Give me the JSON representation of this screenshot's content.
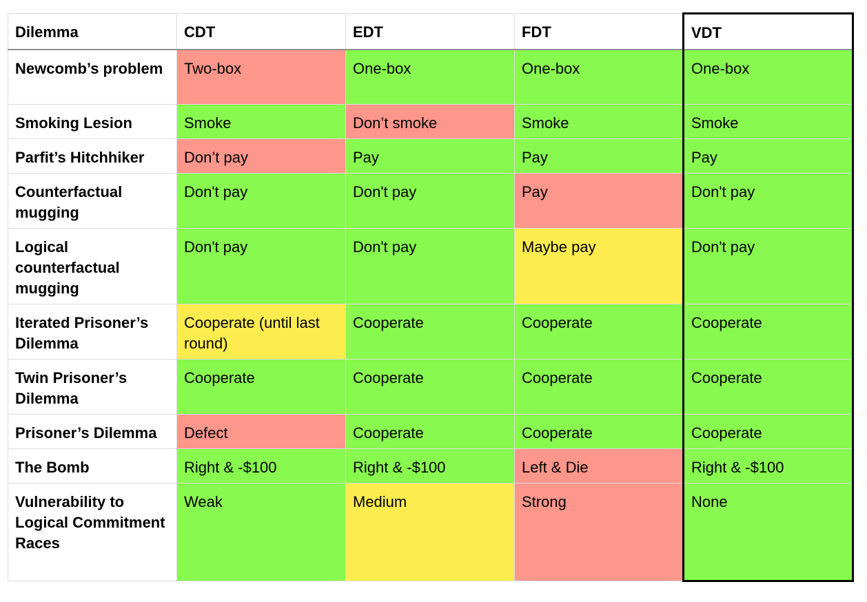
{
  "colors": {
    "green": "#88f94f",
    "red": "#fd968b",
    "yellow": "#fdec50",
    "white": "#ffffff"
  },
  "headers": [
    "Dilemma",
    "CDT",
    "EDT",
    "FDT",
    "VDT"
  ],
  "rows": [
    {
      "name": "Newcomb’s problem",
      "cells": [
        [
          "Two-box",
          "red"
        ],
        [
          "One-box",
          "green"
        ],
        [
          "One-box",
          "green"
        ],
        [
          "One-box",
          "green"
        ]
      ]
    },
    {
      "name": "Smoking Lesion",
      "cells": [
        [
          "Smoke",
          "green"
        ],
        [
          "Don’t smoke",
          "red"
        ],
        [
          "Smoke",
          "green"
        ],
        [
          "Smoke",
          "green"
        ]
      ]
    },
    {
      "name": "Parfit’s Hitchhiker",
      "cells": [
        [
          "Don’t pay",
          "red"
        ],
        [
          "Pay",
          "green"
        ],
        [
          "Pay",
          "green"
        ],
        [
          "Pay",
          "green"
        ]
      ]
    },
    {
      "name": "Counterfactual mugging",
      "cells": [
        [
          "Don't pay",
          "green"
        ],
        [
          "Don't pay",
          "green"
        ],
        [
          "Pay",
          "red"
        ],
        [
          "Don't pay",
          "green"
        ]
      ]
    },
    {
      "name": "Logical counterfactual mugging",
      "cells": [
        [
          "Don't pay",
          "green"
        ],
        [
          "Don't pay",
          "green"
        ],
        [
          "Maybe pay",
          "yellow"
        ],
        [
          "Don't pay",
          "green"
        ]
      ]
    },
    {
      "name": "Iterated Prisoner’s Dilemma",
      "cells": [
        [
          "Cooperate (until last round)",
          "yellow"
        ],
        [
          "Cooperate",
          "green"
        ],
        [
          "Cooperate",
          "green"
        ],
        [
          "Cooperate",
          "green"
        ]
      ]
    },
    {
      "name": "Twin Prisoner’s Dilemma",
      "cells": [
        [
          "Cooperate",
          "green"
        ],
        [
          "Cooperate",
          "green"
        ],
        [
          "Cooperate",
          "green"
        ],
        [
          "Cooperate",
          "green"
        ]
      ]
    },
    {
      "name": "Prisoner’s Dilemma",
      "cells": [
        [
          "Defect",
          "red"
        ],
        [
          "Cooperate",
          "green"
        ],
        [
          "Cooperate",
          "green"
        ],
        [
          "Cooperate",
          "green"
        ]
      ]
    },
    {
      "name": "The Bomb",
      "cells": [
        [
          "Right & -$100",
          "green"
        ],
        [
          "Right & -$100",
          "green"
        ],
        [
          "Left & Die",
          "red"
        ],
        [
          "Right & -$100",
          "green"
        ]
      ]
    },
    {
      "name": "Vulnerability to Logical Commitment Races",
      "cells": [
        [
          "Weak",
          "green"
        ],
        [
          "Medium",
          "yellow"
        ],
        [
          "Strong",
          "red"
        ],
        [
          "None",
          "green"
        ]
      ]
    }
  ]
}
